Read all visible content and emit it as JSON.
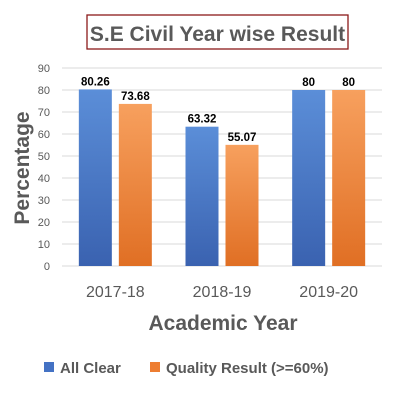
{
  "chart_data": {
    "type": "bar",
    "title": "S.E Civil Year wise Result",
    "xlabel": "Academic Year",
    "ylabel": "Percentage",
    "categories": [
      "2017-18",
      "2018-19",
      "2019-20"
    ],
    "ylim": [
      0,
      90
    ],
    "yticks": [
      0,
      10,
      20,
      30,
      40,
      50,
      60,
      70,
      80,
      90
    ],
    "grid": true,
    "legend_position": "bottom",
    "series": [
      {
        "name": "All Clear",
        "values": [
          80.26,
          63.32,
          80
        ],
        "labels": [
          "80.26",
          "63.32",
          "80"
        ],
        "color": "#4472C4"
      },
      {
        "name": "Quality Result (>=60%)",
        "values": [
          73.68,
          55.07,
          80
        ],
        "labels": [
          "73.68",
          "55.07",
          "80"
        ],
        "color": "#ED7D31"
      }
    ],
    "title_border_color": "#8B1A1A",
    "grid_color": "#D9D9D9",
    "text_color": "#595959"
  }
}
